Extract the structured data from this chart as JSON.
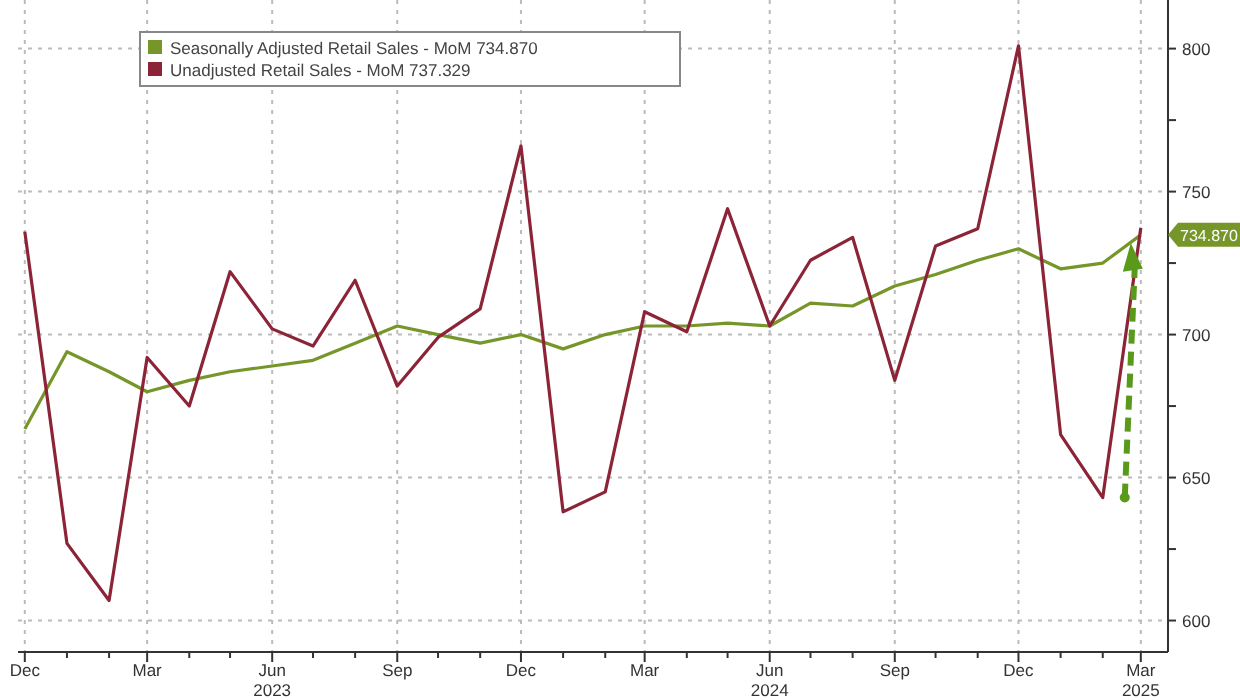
{
  "chart_data": {
    "type": "line",
    "x": [
      "2022-12",
      "2023-01",
      "2023-02",
      "2023-03",
      "2023-04",
      "2023-05",
      "2023-06",
      "2023-07",
      "2023-08",
      "2023-09",
      "2023-10",
      "2023-11",
      "2023-12",
      "2024-01",
      "2024-02",
      "2024-03",
      "2024-04",
      "2024-05",
      "2024-06",
      "2024-07",
      "2024-08",
      "2024-09",
      "2024-10",
      "2024-11",
      "2024-12",
      "2025-01",
      "2025-02",
      "2025-03"
    ],
    "series": [
      {
        "name": "Seasonally Adjusted Retail Sales - MoM 734.870",
        "color": "#76962a",
        "values": [
          667,
          694,
          687,
          680,
          684,
          687,
          689,
          691,
          697,
          703,
          700,
          697,
          700,
          695,
          700,
          703,
          703,
          704,
          703,
          711,
          710,
          717,
          721,
          726,
          730,
          723,
          725,
          734.87
        ]
      },
      {
        "name": "Unadjusted Retail Sales - MoM 737.329",
        "color": "#8c2438",
        "values": [
          736,
          627,
          607,
          692,
          675,
          722,
          702,
          696,
          719,
          682,
          699,
          709,
          766,
          638,
          645,
          708,
          701,
          744,
          703,
          726,
          734,
          684,
          731,
          737,
          801,
          665,
          643,
          737.329
        ]
      }
    ],
    "xlim": [
      "2022-11-26",
      "2025-03-21"
    ],
    "xticks": [
      {
        "value": "2022-12",
        "label": "Dec"
      },
      {
        "value": "2023-01",
        "label": null
      },
      {
        "value": "2023-02",
        "label": null
      },
      {
        "value": "2023-03",
        "label": "Mar"
      },
      {
        "value": "2023-04",
        "label": null
      },
      {
        "value": "2023-05",
        "label": null
      },
      {
        "value": "2023-06",
        "label": "Jun\n2023"
      },
      {
        "value": "2023-07",
        "label": null
      },
      {
        "value": "2023-08",
        "label": null
      },
      {
        "value": "2023-09",
        "label": "Sep"
      },
      {
        "value": "2023-10",
        "label": null
      },
      {
        "value": "2023-11",
        "label": null
      },
      {
        "value": "2023-12",
        "label": "Dec"
      },
      {
        "value": "2024-01",
        "label": null
      },
      {
        "value": "2024-02",
        "label": null
      },
      {
        "value": "2024-03",
        "label": "Mar"
      },
      {
        "value": "2024-04",
        "label": null
      },
      {
        "value": "2024-05",
        "label": null
      },
      {
        "value": "2024-06",
        "label": "Jun\n2024"
      },
      {
        "value": "2024-07",
        "label": null
      },
      {
        "value": "2024-08",
        "label": null
      },
      {
        "value": "2024-09",
        "label": "Sep"
      },
      {
        "value": "2024-10",
        "label": null
      },
      {
        "value": "2024-11",
        "label": null
      },
      {
        "value": "2024-12",
        "label": "Dec"
      },
      {
        "value": "2025-01",
        "label": null
      },
      {
        "value": "2025-02",
        "label": null
      },
      {
        "value": "2025-03",
        "label": "Mar\n2025"
      }
    ],
    "ylim": [
      589,
      817
    ],
    "yticks": [
      600,
      {
        "value": 625,
        "label": null
      },
      650,
      {
        "value": 675,
        "label": null
      },
      700,
      {
        "value": 725,
        "label": null
      },
      750,
      {
        "value": 775,
        "label": null
      },
      800
    ],
    "annotations": [
      "734.870"
    ],
    "grid": true,
    "legend": "top left",
    "line_style": "solid"
  }
}
